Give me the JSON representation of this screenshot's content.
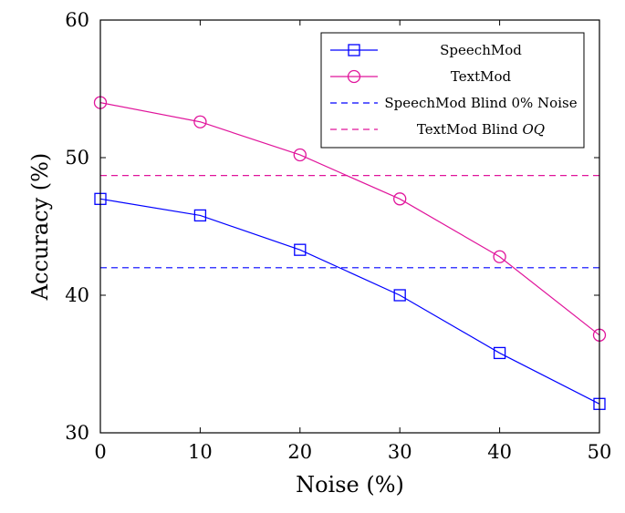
{
  "chart_data": {
    "type": "line",
    "xlabel": "Noise (%)",
    "ylabel": "Accuracy (%)",
    "xlim": [
      0,
      50
    ],
    "ylim": [
      30,
      60
    ],
    "xticks": [
      0,
      10,
      20,
      30,
      40,
      50
    ],
    "yticks": [
      30,
      40,
      50,
      60
    ],
    "grid": false,
    "legend_position": "top-right",
    "x": [
      0,
      10,
      20,
      30,
      40,
      50
    ],
    "series": [
      {
        "name": "SpeechMod",
        "marker": "square",
        "color": "#0000ff",
        "style": "solid",
        "values": [
          47.0,
          45.8,
          43.3,
          40.0,
          35.8,
          32.1
        ]
      },
      {
        "name": "TextMod",
        "marker": "circle",
        "color": "#e0149b",
        "style": "solid",
        "values": [
          54.0,
          52.6,
          50.2,
          47.0,
          42.8,
          37.1
        ]
      },
      {
        "name": "SpeechMod Blind 0% Noise",
        "marker": "none",
        "color": "#0000ff",
        "style": "dashed",
        "constant": 42.0
      },
      {
        "name": "TextMod Blind ",
        "name_italic": "OQ",
        "marker": "none",
        "color": "#e0149b",
        "style": "dashed",
        "constant": 48.7
      }
    ]
  }
}
